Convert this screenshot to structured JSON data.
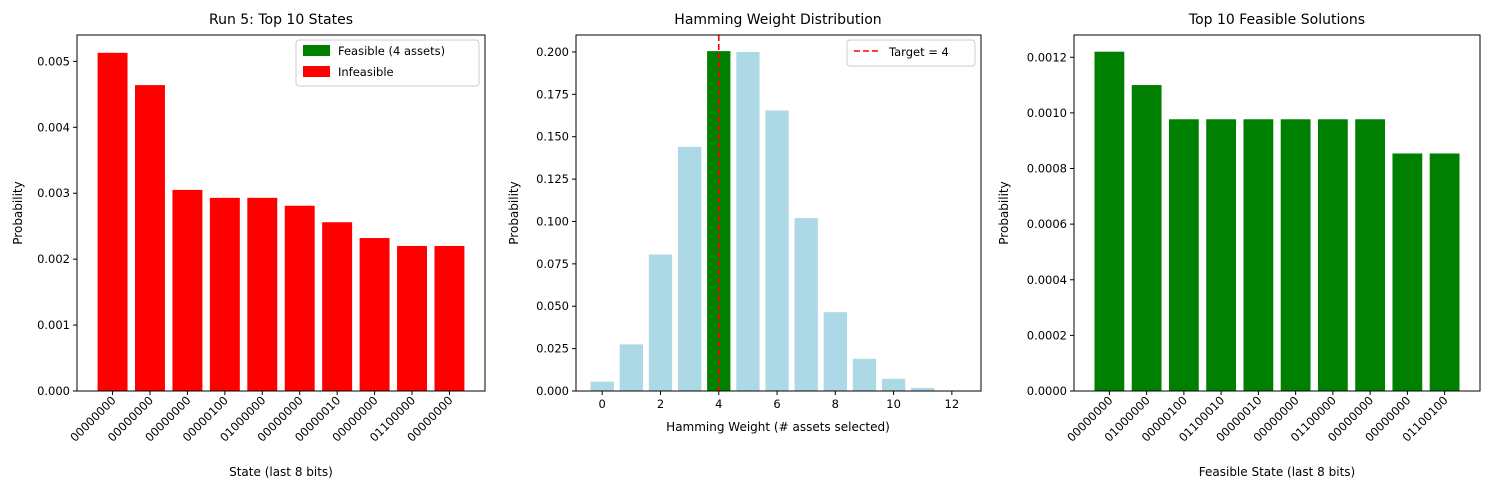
{
  "chart_data": [
    {
      "type": "bar",
      "title": "Run 5: Top 10 States",
      "xlabel": "State (last 8 bits)",
      "ylabel": "Probability",
      "ylim": [
        0,
        0.0054
      ],
      "yticks": [
        "0.000",
        "0.001",
        "0.002",
        "0.003",
        "0.004",
        "0.005"
      ],
      "ytick_values": [
        0,
        0.001,
        0.002,
        0.003,
        0.004,
        0.005
      ],
      "categories": [
        "00000000",
        "00000000",
        "00000000",
        "00000100",
        "01000000",
        "00000000",
        "00000010",
        "00000000",
        "01100000",
        "00000000"
      ],
      "values": [
        0.00513,
        0.00464,
        0.00305,
        0.00293,
        0.00293,
        0.00281,
        0.00256,
        0.00232,
        0.0022,
        0.0022
      ],
      "bar_color": "#ff0000",
      "legend": {
        "position": "upper right",
        "entries": [
          {
            "label": "Feasible (4 assets)",
            "color": "#008000"
          },
          {
            "label": "Infeasible",
            "color": "#ff0000"
          }
        ]
      },
      "grid": false
    },
    {
      "type": "bar",
      "title": "Hamming Weight Distribution",
      "xlabel": "Hamming Weight (# assets selected)",
      "ylabel": "Probability",
      "xlim": [
        -0.9,
        13.0
      ],
      "ylim": [
        0,
        0.21
      ],
      "xticks": [
        "0",
        "2",
        "4",
        "6",
        "8",
        "10",
        "12"
      ],
      "xtick_values": [
        0,
        2,
        4,
        6,
        8,
        10,
        12
      ],
      "yticks": [
        "0.000",
        "0.025",
        "0.050",
        "0.075",
        "0.100",
        "0.125",
        "0.150",
        "0.175",
        "0.200"
      ],
      "ytick_values": [
        0,
        0.025,
        0.05,
        0.075,
        0.1,
        0.125,
        0.15,
        0.175,
        0.2
      ],
      "x": [
        0,
        1,
        2,
        3,
        4,
        5,
        6,
        7,
        8,
        9,
        10,
        11,
        12
      ],
      "values": [
        0.0055,
        0.0275,
        0.0805,
        0.144,
        0.2005,
        0.2,
        0.1655,
        0.102,
        0.0465,
        0.019,
        0.0072,
        0.0018,
        0.0001
      ],
      "bar_colors": [
        "#add8e6",
        "#add8e6",
        "#add8e6",
        "#add8e6",
        "#008000",
        "#add8e6",
        "#add8e6",
        "#add8e6",
        "#add8e6",
        "#add8e6",
        "#add8e6",
        "#add8e6",
        "#add8e6"
      ],
      "reference_line": {
        "x": 4,
        "color": "#ff0000",
        "style": "dashed",
        "label": "Target = 4"
      },
      "legend": {
        "position": "upper right",
        "entries": [
          {
            "label": "Target = 4",
            "color": "#ff0000"
          }
        ]
      },
      "grid": false
    },
    {
      "type": "bar",
      "title": "Top 10 Feasible Solutions",
      "xlabel": "Feasible State (last 8 bits)",
      "ylabel": "Probability",
      "ylim": [
        0,
        0.00128
      ],
      "yticks": [
        "0.0000",
        "0.0002",
        "0.0004",
        "0.0006",
        "0.0008",
        "0.0010",
        "0.0012"
      ],
      "ytick_values": [
        0,
        0.0002,
        0.0004,
        0.0006,
        0.0008,
        0.001,
        0.0012
      ],
      "categories": [
        "00000000",
        "01000000",
        "00000100",
        "01100010",
        "00000010",
        "00000000",
        "01100000",
        "00000000",
        "00000000",
        "01100100"
      ],
      "values": [
        0.00122,
        0.0011,
        0.000977,
        0.000977,
        0.000977,
        0.000977,
        0.000977,
        0.000977,
        0.000854,
        0.000854
      ],
      "bar_color": "#008000",
      "grid": false
    }
  ]
}
